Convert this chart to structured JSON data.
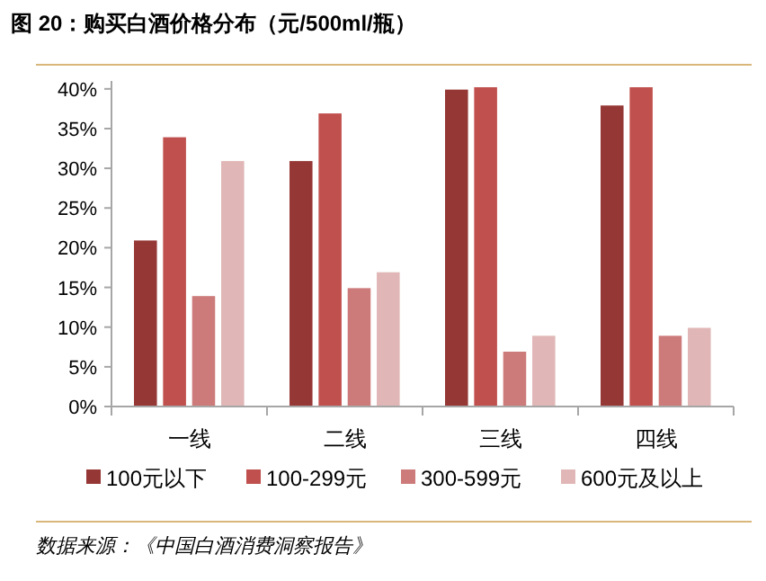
{
  "chart_data": {
    "type": "bar",
    "title": "图 20：购买白酒价格分布（元/500ml/瓶）",
    "categories": [
      "一线",
      "二线",
      "三线",
      "四线"
    ],
    "series": [
      {
        "name": "100元以下",
        "color": "#953735",
        "values": [
          21,
          31,
          40,
          38
        ]
      },
      {
        "name": "100-299元",
        "color": "#c0504d",
        "values": [
          34,
          37,
          40.3,
          40.3
        ]
      },
      {
        "name": "300-599元",
        "color": "#cd7b7a",
        "values": [
          14,
          15,
          7,
          9
        ]
      },
      {
        "name": "600元及以上",
        "color": "#e0b7b6",
        "values": [
          31,
          17,
          9,
          10
        ]
      }
    ],
    "ylim": [
      0,
      41
    ],
    "yticks": [
      {
        "value": 0,
        "label": "0%"
      },
      {
        "value": 5,
        "label": "5%"
      },
      {
        "value": 10,
        "label": "10%"
      },
      {
        "value": 15,
        "label": "15%"
      },
      {
        "value": 20,
        "label": "20%"
      },
      {
        "value": 25,
        "label": "25%"
      },
      {
        "value": 30,
        "label": "30%"
      },
      {
        "value": 35,
        "label": "35%"
      },
      {
        "value": 40,
        "label": "40%"
      }
    ],
    "grid": false,
    "legend": "bottom",
    "annotations": [
      "数据来源：《中国白酒消费洞察报告》"
    ]
  }
}
